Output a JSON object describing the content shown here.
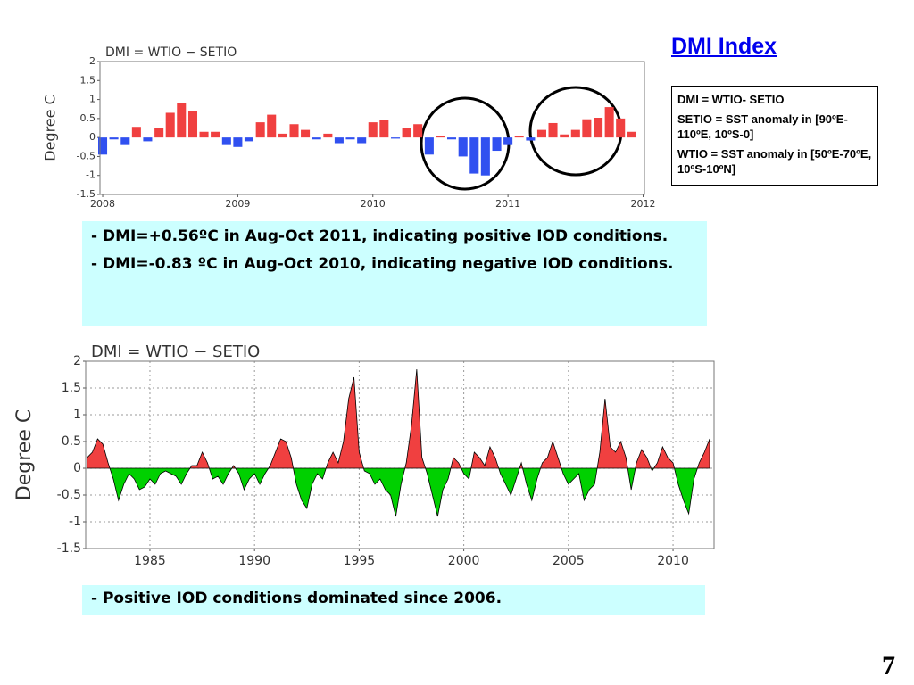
{
  "slide_title": "DMI Index",
  "definitions": [
    "DMI = WTIO- SETIO",
    "SETIO = SST anomaly in [90ºE-110ºE, 10ºS-0]",
    "WTIO = SST anomaly in [50ºE-70ºE, 10ºS-10ºN]"
  ],
  "notes": [
    "- DMI=+0.56ºC in Aug-Oct 2011, indicating positive IOD conditions.",
    "- DMI=-0.83 ºC  in Aug-Oct 2010, indicating negative IOD conditions."
  ],
  "conclusion": "- Positive IOD conditions dominated since 2006.",
  "page_number": "7",
  "chart_data": [
    {
      "type": "bar",
      "title": "DMI = WTIO − SETIO",
      "ylabel": "Degree C",
      "x": [
        2008,
        2008.083,
        2008.167,
        2008.25,
        2008.333,
        2008.417,
        2008.5,
        2008.583,
        2008.667,
        2008.75,
        2008.833,
        2008.917,
        2009,
        2009.083,
        2009.167,
        2009.25,
        2009.333,
        2009.417,
        2009.5,
        2009.583,
        2009.667,
        2009.75,
        2009.833,
        2009.917,
        2010,
        2010.083,
        2010.167,
        2010.25,
        2010.333,
        2010.417,
        2010.5,
        2010.583,
        2010.667,
        2010.75,
        2010.833,
        2010.917,
        2011,
        2011.083,
        2011.167,
        2011.25,
        2011.333,
        2011.417,
        2011.5,
        2011.583,
        2011.667,
        2011.75,
        2011.833,
        2011.917
      ],
      "values": [
        -0.45,
        -0.05,
        -0.2,
        0.28,
        -0.1,
        0.25,
        0.65,
        0.9,
        0.7,
        0.15,
        0.15,
        -0.2,
        -0.25,
        -0.1,
        0.4,
        0.6,
        0.1,
        0.35,
        0.2,
        -0.05,
        0.1,
        -0.15,
        -0.05,
        -0.15,
        0.4,
        0.45,
        -0.03,
        0.25,
        0.35,
        -0.45,
        0.03,
        -0.05,
        -0.5,
        -0.95,
        -1.0,
        -0.35,
        -0.2,
        0.03,
        -0.08,
        0.2,
        0.38,
        0.08,
        0.2,
        0.48,
        0.52,
        0.8,
        0.5,
        0.15
      ],
      "positive_color": "#f04040",
      "negative_color": "#3050f0",
      "xlim": [
        2007.98,
        2012.01
      ],
      "xticks": [
        2008,
        2009,
        2010,
        2011,
        2012
      ],
      "ylim": [
        -1.5,
        2
      ],
      "yticks": [
        -1.5,
        -1,
        -0.5,
        0,
        0.5,
        1,
        1.5,
        2
      ],
      "grid": false
    },
    {
      "type": "area",
      "title": "DMI = WTIO − SETIO",
      "ylabel": "Degree C",
      "x": [
        1982,
        1982.25,
        1982.5,
        1982.75,
        1983,
        1983.25,
        1983.5,
        1983.75,
        1984,
        1984.25,
        1984.5,
        1984.75,
        1985,
        1985.25,
        1985.5,
        1985.75,
        1986,
        1986.25,
        1986.5,
        1986.75,
        1987,
        1987.25,
        1987.5,
        1987.75,
        1988,
        1988.25,
        1988.5,
        1988.75,
        1989,
        1989.25,
        1989.5,
        1989.75,
        1990,
        1990.25,
        1990.5,
        1990.75,
        1991,
        1991.25,
        1991.5,
        1991.75,
        1992,
        1992.25,
        1992.5,
        1992.75,
        1993,
        1993.25,
        1993.5,
        1993.75,
        1994,
        1994.25,
        1994.5,
        1994.75,
        1995,
        1995.25,
        1995.5,
        1995.75,
        1996,
        1996.25,
        1996.5,
        1996.75,
        1997,
        1997.25,
        1997.5,
        1997.75,
        1998,
        1998.25,
        1998.5,
        1998.75,
        1999,
        1999.25,
        1999.5,
        1999.75,
        2000,
        2000.25,
        2000.5,
        2000.75,
        2001,
        2001.25,
        2001.5,
        2001.75,
        2002,
        2002.25,
        2002.5,
        2002.75,
        2003,
        2003.25,
        2003.5,
        2003.75,
        2004,
        2004.25,
        2004.5,
        2004.75,
        2005,
        2005.25,
        2005.5,
        2005.75,
        2006,
        2006.25,
        2006.5,
        2006.75,
        2007,
        2007.25,
        2007.5,
        2007.75,
        2008,
        2008.25,
        2008.5,
        2008.75,
        2009,
        2009.25,
        2009.5,
        2009.75,
        2010,
        2010.25,
        2010.5,
        2010.75,
        2011,
        2011.25,
        2011.5,
        2011.75
      ],
      "values": [
        0.2,
        0.3,
        0.55,
        0.45,
        0.1,
        -0.2,
        -0.6,
        -0.3,
        -0.1,
        -0.2,
        -0.4,
        -0.35,
        -0.2,
        -0.3,
        -0.1,
        -0.05,
        -0.1,
        -0.15,
        -0.3,
        -0.1,
        0.05,
        0.05,
        0.3,
        0.1,
        -0.2,
        -0.15,
        -0.3,
        -0.1,
        0.05,
        -0.1,
        -0.4,
        -0.2,
        -0.1,
        -0.3,
        -0.1,
        0.05,
        0.3,
        0.55,
        0.5,
        0.2,
        -0.3,
        -0.6,
        -0.75,
        -0.3,
        -0.1,
        -0.2,
        0.1,
        0.3,
        0.1,
        0.5,
        1.3,
        1.7,
        0.3,
        -0.05,
        -0.1,
        -0.3,
        -0.2,
        -0.4,
        -0.5,
        -0.9,
        -0.3,
        0.1,
        0.8,
        1.85,
        0.2,
        -0.1,
        -0.5,
        -0.9,
        -0.4,
        -0.2,
        0.2,
        0.1,
        -0.1,
        -0.2,
        0.3,
        0.2,
        0.05,
        0.4,
        0.2,
        -0.1,
        -0.3,
        -0.5,
        -0.2,
        0.1,
        -0.3,
        -0.6,
        -0.2,
        0.1,
        0.2,
        0.5,
        0.2,
        -0.1,
        -0.3,
        -0.2,
        -0.1,
        -0.6,
        -0.4,
        -0.3,
        0.3,
        1.3,
        0.4,
        0.3,
        0.5,
        0.2,
        -0.4,
        0.1,
        0.35,
        0.2,
        -0.05,
        0.1,
        0.4,
        0.2,
        0.1,
        -0.3,
        -0.6,
        -0.85,
        -0.2,
        0.1,
        0.3,
        0.55
      ],
      "positive_color": "#f04040",
      "negative_color": "#00d000",
      "xlim": [
        1981.93,
        2011.96
      ],
      "xticks": [
        1985,
        1990,
        1995,
        2000,
        2005,
        2010
      ],
      "ylim": [
        -1.5,
        2
      ],
      "yticks": [
        -1.5,
        -1,
        -0.5,
        0,
        0.5,
        1,
        1.5,
        2
      ],
      "grid": true
    }
  ]
}
